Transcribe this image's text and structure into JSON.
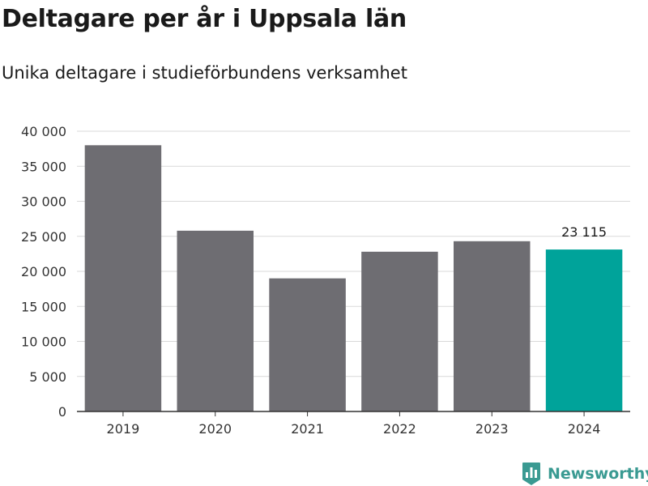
{
  "header": {
    "title": "Deltagare per år i Uppsala län",
    "subtitle": "Unika deltagare i studieförbundens verksamhet"
  },
  "logo": {
    "text": "Newsworthy",
    "icon": "bar-chart-badge-icon"
  },
  "colors": {
    "bar": "#6e6d72",
    "highlight": "#00a39a",
    "grid": "#d9d9d9",
    "axis": "#333333",
    "logo": "#3a9a92"
  },
  "chart_data": {
    "type": "bar",
    "title": "Deltagare per år i Uppsala län",
    "subtitle": "Unika deltagare i studieförbundens verksamhet",
    "xlabel": "",
    "ylabel": "",
    "categories": [
      "2019",
      "2020",
      "2021",
      "2022",
      "2023",
      "2024"
    ],
    "values": [
      38000,
      25800,
      19000,
      22800,
      24300,
      23115
    ],
    "highlight_index": 5,
    "data_labels": [
      null,
      null,
      null,
      null,
      null,
      "23 115"
    ],
    "ylim": [
      0,
      40000
    ],
    "yticks": [
      0,
      5000,
      10000,
      15000,
      20000,
      25000,
      30000,
      35000,
      40000
    ],
    "ytick_labels": [
      "0",
      "5 000",
      "10 000",
      "15 000",
      "20 000",
      "25 000",
      "30 000",
      "35 000",
      "40 000"
    ],
    "grid": true,
    "legend": "none"
  }
}
